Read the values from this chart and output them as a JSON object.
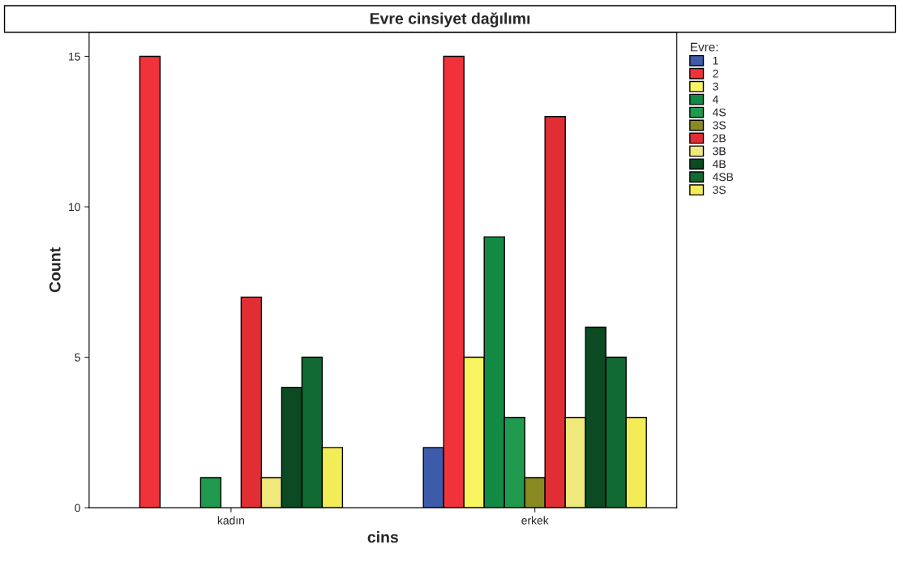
{
  "chart_data": {
    "type": "bar",
    "title": "Evre cinsiyet dağılımı",
    "xlabel": "cins",
    "ylabel": "Count",
    "legend_title": "Evre:",
    "categories": [
      "kadın",
      "erkek"
    ],
    "series": [
      {
        "name": "1",
        "color": "#3e5bab",
        "values": [
          null,
          2
        ]
      },
      {
        "name": "2",
        "color": "#f0333b",
        "values": [
          15,
          15
        ]
      },
      {
        "name": "3",
        "color": "#f8f560",
        "values": [
          null,
          5
        ]
      },
      {
        "name": "4",
        "color": "#128a44",
        "values": [
          null,
          9
        ]
      },
      {
        "name": "4S",
        "color": "#1f9a4e",
        "values": [
          1,
          3
        ]
      },
      {
        "name": "3S",
        "color": "#8a8a22",
        "values": [
          null,
          1
        ]
      },
      {
        "name": "2B",
        "color": "#e02e34",
        "values": [
          7,
          13
        ]
      },
      {
        "name": "3B",
        "color": "#efe87a",
        "values": [
          1,
          3
        ]
      },
      {
        "name": "4B",
        "color": "#0b4a22",
        "values": [
          4,
          6
        ]
      },
      {
        "name": "4SB",
        "color": "#116a32",
        "values": [
          5,
          5
        ]
      },
      {
        "name": "3S",
        "color": "#f2ec58",
        "values": [
          2,
          3
        ]
      }
    ],
    "ylim": [
      0,
      15.8
    ],
    "yticks": [
      0,
      5,
      10,
      15
    ],
    "grid": false,
    "legend": "right"
  }
}
